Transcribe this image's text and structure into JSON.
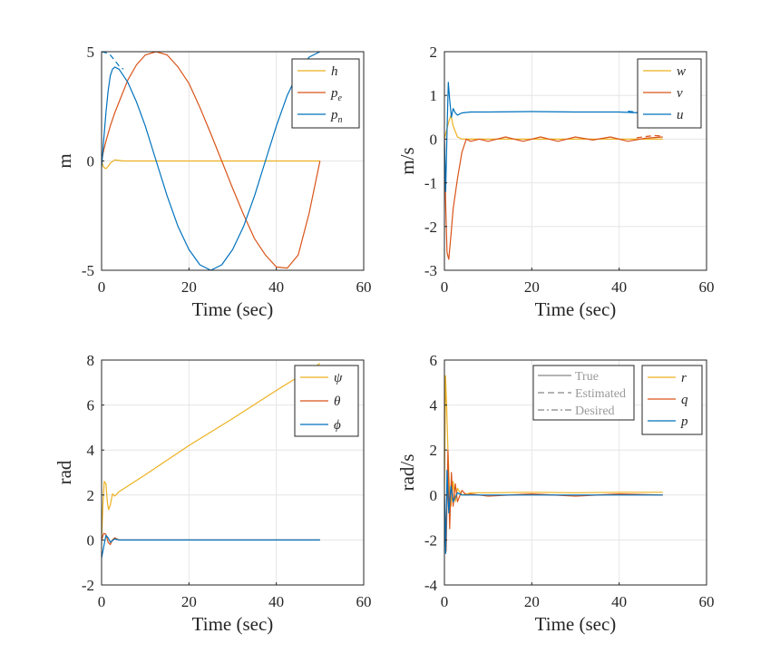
{
  "chart_data": [
    {
      "type": "line",
      "xlabel": "Time (sec)",
      "ylabel": "m",
      "xlim": [
        0,
        60
      ],
      "ylim": [
        -5,
        5
      ],
      "xticks": [
        0,
        20,
        40,
        60
      ],
      "yticks": [
        -5,
        0,
        5
      ],
      "xtick_labels": [
        "0",
        "20",
        "40",
        "60"
      ],
      "ytick_labels": [
        "-5",
        "0",
        "5"
      ],
      "grid": true,
      "legend_position": "top-right",
      "series": [
        {
          "name": "h",
          "sub": "",
          "color": "#EDB120",
          "x": [
            0,
            0.5,
            1,
            1.5,
            2,
            3,
            5,
            10,
            20,
            30,
            40,
            50
          ],
          "values": [
            0,
            -0.3,
            -0.35,
            -0.25,
            -0.1,
            0.05,
            0,
            0,
            0,
            0,
            0,
            0
          ]
        },
        {
          "name": "p",
          "sub": "e",
          "color": "#D95319",
          "x": [
            0,
            0.5,
            1,
            2,
            3,
            4,
            6,
            8,
            10,
            12.5,
            15,
            17.5,
            20,
            22.5,
            25,
            27.5,
            30,
            32.5,
            35,
            37.5,
            40,
            42.5,
            45,
            47.5,
            50
          ],
          "values": [
            0,
            0.5,
            0.9,
            1.6,
            2.2,
            2.7,
            3.7,
            4.4,
            4.85,
            5,
            4.85,
            4.3,
            3.55,
            2.45,
            1.25,
            0,
            -1.25,
            -2.45,
            -3.55,
            -4.3,
            -4.85,
            -4.9,
            -4.3,
            -2.4,
            0
          ]
        },
        {
          "name": "p",
          "sub": "n",
          "color": "#0072BD",
          "x": [
            0,
            0.5,
            1,
            1.5,
            2,
            2.5,
            3,
            4,
            6,
            8,
            10,
            12.5,
            15,
            17.5,
            20,
            22.5,
            25,
            27.5,
            30,
            32.5,
            35,
            37.5,
            40,
            42.5,
            45,
            47.5,
            50
          ],
          "values": [
            -0.3,
            1,
            2.2,
            3.2,
            3.9,
            4.2,
            4.3,
            4.2,
            3.6,
            2.7,
            1.6,
            0,
            -1.6,
            -3,
            -4.05,
            -4.75,
            -5,
            -4.75,
            -4.05,
            -3,
            -1.6,
            0,
            1.6,
            3,
            4.05,
            4.75,
            5
          ]
        }
      ],
      "dashed_overlays": [
        {
          "series": "p_n",
          "color": "#0072BD",
          "x": [
            0,
            1,
            2,
            3,
            4,
            5
          ],
          "values": [
            5,
            4.95,
            4.85,
            4.6,
            4.35,
            4.2
          ]
        }
      ]
    },
    {
      "type": "line",
      "xlabel": "Time (sec)",
      "ylabel": "m/s",
      "xlim": [
        0,
        60
      ],
      "ylim": [
        -3,
        2
      ],
      "xticks": [
        0,
        20,
        40,
        60
      ],
      "yticks": [
        -3,
        -2,
        -1,
        0,
        1,
        2
      ],
      "xtick_labels": [
        "0",
        "20",
        "40",
        "60"
      ],
      "ytick_labels": [
        "-3",
        "-2",
        "-1",
        "0",
        "1",
        "2"
      ],
      "grid": true,
      "legend_position": "top-right",
      "series": [
        {
          "name": "w",
          "sub": "",
          "color": "#EDB120",
          "x": [
            0,
            0.5,
            1,
            1.5,
            2,
            3,
            4,
            6,
            10,
            20,
            30,
            40,
            50
          ],
          "values": [
            0,
            0.2,
            0.4,
            0.55,
            0.3,
            0.05,
            0,
            0,
            0,
            0,
            0,
            0,
            0
          ]
        },
        {
          "name": "v",
          "sub": "",
          "color": "#D95319",
          "x": [
            0,
            0.3,
            0.6,
            1,
            1.5,
            2,
            3,
            4,
            5,
            6,
            8,
            10,
            14,
            18,
            22,
            26,
            30,
            34,
            38,
            42,
            46,
            50
          ],
          "values": [
            0,
            -1.5,
            -2.6,
            -2.75,
            -2.2,
            -1.6,
            -0.9,
            -0.3,
            0,
            -0.05,
            0,
            -0.05,
            0.05,
            -0.05,
            0.05,
            -0.05,
            0.05,
            -0.02,
            0.05,
            -0.05,
            0.02,
            0.05
          ]
        },
        {
          "name": "u",
          "sub": "",
          "color": "#0072BD",
          "x": [
            0,
            0.3,
            0.6,
            0.9,
            1.2,
            1.6,
            2,
            2.5,
            3,
            4,
            6,
            10,
            20,
            30,
            40,
            45,
            50
          ],
          "values": [
            0,
            -1.2,
            0.2,
            1.3,
            0.9,
            0.5,
            0.7,
            0.6,
            0.55,
            0.6,
            0.62,
            0.62,
            0.63,
            0.62,
            0.62,
            0.6,
            0.61
          ]
        }
      ],
      "dashed_overlays": [
        {
          "series": "u",
          "color": "#0072BD",
          "x": [
            42,
            44,
            46,
            48,
            50
          ],
          "values": [
            0.64,
            0.62,
            0.58,
            0.55,
            0.56
          ]
        },
        {
          "series": "v",
          "color": "#D95319",
          "x": [
            44,
            46,
            48,
            50
          ],
          "values": [
            0.03,
            0.06,
            0.08,
            0.07
          ]
        }
      ]
    },
    {
      "type": "line",
      "xlabel": "Time (sec)",
      "ylabel": "rad",
      "xlim": [
        0,
        60
      ],
      "ylim": [
        -2,
        8
      ],
      "xticks": [
        0,
        20,
        40,
        60
      ],
      "yticks": [
        -2,
        0,
        2,
        4,
        6,
        8
      ],
      "xtick_labels": [
        "0",
        "20",
        "40",
        "60"
      ],
      "ytick_labels": [
        "-2",
        "0",
        "2",
        "4",
        "6",
        "8"
      ],
      "grid": true,
      "legend_position": "top-right",
      "series": [
        {
          "name": "ψ",
          "sub": "",
          "color": "#EDB120",
          "x": [
            0,
            0.3,
            0.6,
            1,
            1.3,
            1.6,
            2,
            2.5,
            3,
            3.5,
            4,
            10,
            20,
            30,
            40,
            50
          ],
          "values": [
            0,
            1.5,
            2.6,
            2.5,
            1.7,
            1.35,
            1.55,
            2.05,
            1.95,
            2.05,
            2.15,
            2.9,
            4.2,
            5.4,
            6.65,
            7.85
          ]
        },
        {
          "name": "θ",
          "sub": "",
          "color": "#D95319",
          "x": [
            0,
            0.5,
            1,
            1.5,
            2,
            2.5,
            3,
            4,
            6,
            10,
            20,
            30,
            40,
            50
          ],
          "values": [
            0,
            0.3,
            0.25,
            -0.1,
            -0.2,
            0,
            0.1,
            0,
            0,
            0,
            0,
            0,
            0,
            0
          ]
        },
        {
          "name": "ϕ",
          "sub": "",
          "color": "#0072BD",
          "x": [
            0,
            0.5,
            1,
            1.5,
            2,
            3,
            4,
            6,
            10,
            20,
            30,
            40,
            50
          ],
          "values": [
            -0.8,
            -0.3,
            0.2,
            0.1,
            -0.1,
            0.05,
            0,
            0,
            0,
            0,
            0,
            0,
            0
          ]
        }
      ],
      "dashed_overlays": []
    },
    {
      "type": "line",
      "xlabel": "Time (sec)",
      "ylabel": "rad/s",
      "xlim": [
        0,
        60
      ],
      "ylim": [
        -4,
        6
      ],
      "xticks": [
        0,
        20,
        40,
        60
      ],
      "yticks": [
        -4,
        -2,
        0,
        2,
        4,
        6
      ],
      "xtick_labels": [
        "0",
        "20",
        "40",
        "60"
      ],
      "ytick_labels": [
        "-4",
        "-2",
        "0",
        "2",
        "4",
        "6"
      ],
      "grid": true,
      "legend_position": "top-right",
      "series": [
        {
          "name": "r",
          "sub": "",
          "color": "#EDB120",
          "x": [
            0,
            0.25,
            0.5,
            0.8,
            1.1,
            1.5,
            2,
            2.5,
            3,
            4,
            6,
            10,
            20,
            30,
            40,
            50
          ],
          "values": [
            0,
            5.3,
            4,
            2,
            0.5,
            -0.5,
            0.6,
            -0.3,
            0.3,
            0,
            0.1,
            0.1,
            0.12,
            0.1,
            0.12,
            0.12
          ]
        },
        {
          "name": "q",
          "sub": "",
          "color": "#D95319",
          "x": [
            0,
            0.4,
            0.8,
            1.2,
            1.6,
            2,
            2.5,
            3,
            4,
            5,
            6,
            10,
            20,
            30,
            40,
            50
          ],
          "values": [
            0,
            -2.5,
            2,
            -1.5,
            1,
            -0.5,
            0.5,
            -0.3,
            0.2,
            0,
            0.05,
            -0.05,
            0.05,
            -0.05,
            0.05,
            0
          ]
        },
        {
          "name": "p",
          "sub": "",
          "color": "#0072BD",
          "x": [
            0,
            0.3,
            0.6,
            1,
            1.5,
            2,
            3,
            4,
            6,
            10,
            20,
            30,
            40,
            50
          ],
          "values": [
            0,
            -2.6,
            1.1,
            -0.8,
            0.4,
            -0.3,
            0.1,
            0,
            0,
            0,
            0,
            0,
            0,
            0
          ]
        }
      ],
      "style_legend": [
        "True",
        "Estimated",
        "Desired"
      ],
      "dashed_overlays": []
    }
  ]
}
